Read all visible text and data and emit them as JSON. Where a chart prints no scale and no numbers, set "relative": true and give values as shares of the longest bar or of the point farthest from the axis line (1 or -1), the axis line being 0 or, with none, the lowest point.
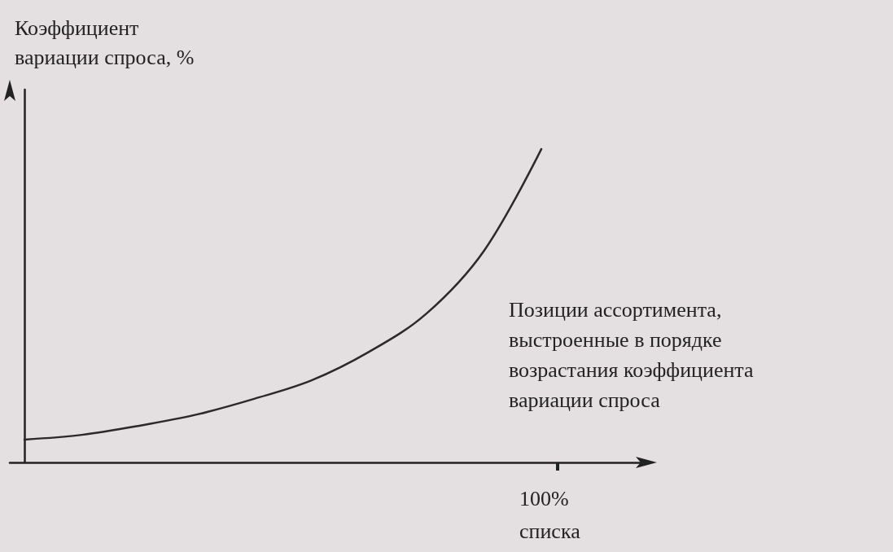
{
  "chart_data": {
    "type": "line",
    "relative": true,
    "ylabel": "Коэффициент\nвариации спроса, %",
    "xlabel": "Позиции ассортимента,\nвыстроенные в порядке\nвозрастания коэффициента\nвариации спроса",
    "categories": [
      null,
      null,
      null,
      null,
      null,
      null,
      null,
      null,
      null,
      null
    ],
    "annotations": [
      "100%\nсписка"
    ],
    "series": [
      {
        "color": "#2a2a2a",
        "values": [
          0.073,
          0.088,
          0.117,
          0.153,
          0.203,
          0.262,
          0.353,
          0.475,
          0.675,
          1
        ]
      }
    ],
    "grid": false,
    "marker": "none",
    "line_style": "solid"
  }
}
